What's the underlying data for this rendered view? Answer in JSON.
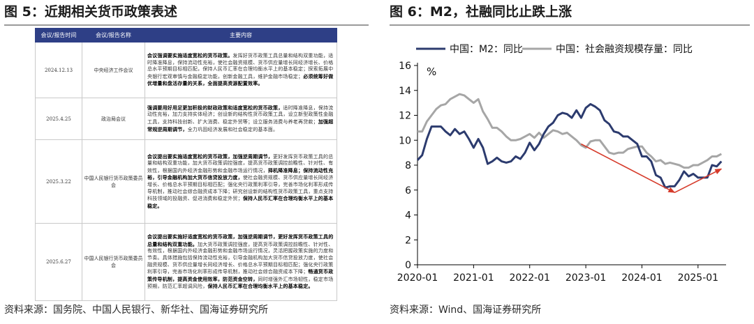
{
  "left": {
    "title": "图 5：近期相关货币政策表述",
    "source": "资料来源：国务院、中国人民银行、新华社、国海证券研究所",
    "table": {
      "headers": [
        "会议/报告时间",
        "会议/报告名称",
        "主要内容"
      ],
      "rows": [
        {
          "date": "2024.12.13",
          "name": "中央经济工作会议",
          "content": [
            {
              "t": "会议强调要实施适度宽松的货币政策。",
              "b": true
            },
            {
              "t": "发挥好货币政策工具总量和结构双重功能，适时降准降息，保持流动性充裕，使社会融资规模、货币供应量增长同经济增长、价格总水平预期目标相匹配，保持人民币汇率在合理均衡水平上的基本稳定；探索拓展中央银行宏观审慎与金融稳定功能，创新金融工具，维护金融市场稳定；",
              "b": false
            },
            {
              "t": "必须统筹好做优增量和盘活存量的关系，全面提高资源配置效率。",
              "b": true
            }
          ]
        },
        {
          "date": "2025.4.25",
          "name": "政治局会议",
          "content": [
            {
              "t": "强调要用好用足更加积极的财政政策和适度宽松的货币政策，",
              "b": true
            },
            {
              "t": "适时降准降息，保持流动性充裕，加力支持实体经济；创设新的结构性货币政策工具，设立新型政策性金融工具，支持科技创新、扩大消费、稳定外贸等；设立服务消费与养老再贷款；",
              "b": false
            },
            {
              "t": "加强超常规逆周期调节，",
              "b": true
            },
            {
              "t": "全力巩固经济发展和社会稳定的基本面。",
              "b": false
            }
          ]
        },
        {
          "date": "2025.3.22",
          "name": "中国人民银行货币政策委员会",
          "content": [
            {
              "t": "会议提出要实施适度宽松的货币政策，加强逆周期调节，",
              "b": true
            },
            {
              "t": "更好发挥货币政策工具的总量和结构双重功能，加大货币政策调控强度，提高货币政策调控前瞻性、针对性、有效性，根据国内外经济金融形势和金融市场运行情况，",
              "b": false
            },
            {
              "t": "择机降准降息；保持流动性充裕，引导金融机构加大货币信贷投放力度，",
              "b": true
            },
            {
              "t": "使社会融资规模、货币供应量增长同经济增长、价格总水平预期目标相匹配；强化央行政策利率引导，完善市场化利率形成传导机制，推动社会综合融资成本下降；研究创设新的结构性货币政策工具，重点支持科技领域的投融资、促进消费和稳定外贸；",
              "b": false
            },
            {
              "t": "保持人民币汇率在合理均衡水平上的基本稳定。",
              "b": true
            }
          ]
        },
        {
          "date": "2025.6.27",
          "name": "中国人民银行货币政策委员会",
          "content": [
            {
              "t": "会议提出要实施好适度宽松的货币政策，加强逆周期调节，更好发挥货币政策工具的总量和结构双重功能。",
              "b": true
            },
            {
              "t": "加大货币政策调控强度，提高货币政策调控前瞻性、针对性、有效性，根据国内外经济金融形势和金融市场运行情况，灵活把握政策实施的力度和节奏。具体措施包括保持流动性充裕，引导金融机构加大货币信贷投放力度，使社会融资规模、货币供应量增长同经济增长、价格总水平预期目标相匹配；强化央行政策利率引导，完善市场化利率形成传导机制，推动社会综合融资成本下降；",
              "b": false
            },
            {
              "t": "畅通货币政策传导机制，提高资金使用效率，防范资金空转，",
              "b": true
            },
            {
              "t": "同时增强外汇市场韧性，稳定市场预期，防范汇率超调风险，",
              "b": false
            },
            {
              "t": "保持人民币汇率在合理均衡水平上的基本稳定。",
              "b": true
            }
          ]
        }
      ]
    }
  },
  "right": {
    "title": "图 6：M2，社融同比止跌上涨",
    "source": "资料来源：Wind、国海证券研究所",
    "chart_data": {
      "type": "line",
      "title": "",
      "xlabel": "",
      "ylabel": "%",
      "ylim": [
        0,
        16
      ],
      "yticks": [
        0,
        2,
        4,
        6,
        8,
        10,
        12,
        14,
        16
      ],
      "xticks": [
        "2020-01",
        "2021-01",
        "2022-01",
        "2023-01",
        "2024-01",
        "2025-01"
      ],
      "xlim": [
        "2020-01",
        "2025-07"
      ],
      "grid": false,
      "legend_position": "top",
      "series": [
        {
          "name": "中国：M2：同比",
          "color": "#2c3b6e",
          "points": [
            [
              "2020-01",
              8.4
            ],
            [
              "2020-02",
              8.8
            ],
            [
              "2020-03",
              10.1
            ],
            [
              "2020-04",
              11.1
            ],
            [
              "2020-05",
              11.1
            ],
            [
              "2020-06",
              11.1
            ],
            [
              "2020-07",
              10.7
            ],
            [
              "2020-08",
              10.4
            ],
            [
              "2020-09",
              10.9
            ],
            [
              "2020-10",
              10.5
            ],
            [
              "2020-11",
              10.7
            ],
            [
              "2020-12",
              10.1
            ],
            [
              "2021-01",
              9.4
            ],
            [
              "2021-02",
              10.1
            ],
            [
              "2021-03",
              9.4
            ],
            [
              "2021-04",
              8.1
            ],
            [
              "2021-05",
              8.3
            ],
            [
              "2021-06",
              8.6
            ],
            [
              "2021-07",
              8.3
            ],
            [
              "2021-08",
              8.2
            ],
            [
              "2021-09",
              8.3
            ],
            [
              "2021-10",
              8.7
            ],
            [
              "2021-11",
              8.5
            ],
            [
              "2021-12",
              9.0
            ],
            [
              "2022-01",
              9.8
            ],
            [
              "2022-02",
              9.2
            ],
            [
              "2022-03",
              9.7
            ],
            [
              "2022-04",
              10.5
            ],
            [
              "2022-05",
              11.1
            ],
            [
              "2022-06",
              11.4
            ],
            [
              "2022-07",
              12.0
            ],
            [
              "2022-08",
              12.2
            ],
            [
              "2022-09",
              12.1
            ],
            [
              "2022-10",
              11.8
            ],
            [
              "2022-11",
              12.4
            ],
            [
              "2022-12",
              11.8
            ],
            [
              "2023-01",
              12.6
            ],
            [
              "2023-02",
              12.9
            ],
            [
              "2023-03",
              12.7
            ],
            [
              "2023-04",
              12.4
            ],
            [
              "2023-05",
              11.6
            ],
            [
              "2023-06",
              11.3
            ],
            [
              "2023-07",
              10.7
            ],
            [
              "2023-08",
              10.6
            ],
            [
              "2023-09",
              10.3
            ],
            [
              "2023-10",
              10.3
            ],
            [
              "2023-11",
              10.0
            ],
            [
              "2023-12",
              9.7
            ],
            [
              "2024-01",
              8.7
            ],
            [
              "2024-02",
              8.7
            ],
            [
              "2024-03",
              8.3
            ],
            [
              "2024-04",
              7.2
            ],
            [
              "2024-05",
              7.0
            ],
            [
              "2024-06",
              6.2
            ],
            [
              "2024-07",
              6.3
            ],
            [
              "2024-08",
              6.3
            ],
            [
              "2024-09",
              6.8
            ],
            [
              "2024-10",
              7.5
            ],
            [
              "2024-11",
              7.1
            ],
            [
              "2024-12",
              7.3
            ],
            [
              "2025-01",
              7.0
            ],
            [
              "2025-02",
              7.0
            ],
            [
              "2025-03",
              7.0
            ],
            [
              "2025-04",
              8.0
            ],
            [
              "2025-05",
              7.9
            ],
            [
              "2025-06",
              8.3
            ]
          ]
        },
        {
          "name": "中国：社会融资规模存量：同比",
          "color": "#a6a6a6",
          "points": [
            [
              "2020-01",
              10.7
            ],
            [
              "2020-02",
              10.7
            ],
            [
              "2020-03",
              11.5
            ],
            [
              "2020-04",
              12.0
            ],
            [
              "2020-05",
              12.5
            ],
            [
              "2020-06",
              12.8
            ],
            [
              "2020-07",
              12.9
            ],
            [
              "2020-08",
              13.3
            ],
            [
              "2020-09",
              13.5
            ],
            [
              "2020-10",
              13.7
            ],
            [
              "2020-11",
              13.6
            ],
            [
              "2020-12",
              13.3
            ],
            [
              "2021-01",
              13.0
            ],
            [
              "2021-02",
              13.3
            ],
            [
              "2021-03",
              12.3
            ],
            [
              "2021-04",
              11.7
            ],
            [
              "2021-05",
              11.0
            ],
            [
              "2021-06",
              11.0
            ],
            [
              "2021-07",
              10.7
            ],
            [
              "2021-08",
              10.3
            ],
            [
              "2021-09",
              10.0
            ],
            [
              "2021-10",
              10.0
            ],
            [
              "2021-11",
              10.1
            ],
            [
              "2021-12",
              10.3
            ],
            [
              "2022-01",
              10.5
            ],
            [
              "2022-02",
              10.2
            ],
            [
              "2022-03",
              10.6
            ],
            [
              "2022-04",
              10.2
            ],
            [
              "2022-05",
              10.5
            ],
            [
              "2022-06",
              10.8
            ],
            [
              "2022-07",
              10.7
            ],
            [
              "2022-08",
              10.5
            ],
            [
              "2022-09",
              10.6
            ],
            [
              "2022-10",
              10.3
            ],
            [
              "2022-11",
              10.0
            ],
            [
              "2022-12",
              9.6
            ],
            [
              "2023-01",
              9.4
            ],
            [
              "2023-02",
              9.9
            ],
            [
              "2023-03",
              10.0
            ],
            [
              "2023-04",
              10.0
            ],
            [
              "2023-05",
              9.5
            ],
            [
              "2023-06",
              9.0
            ],
            [
              "2023-07",
              8.9
            ],
            [
              "2023-08",
              9.0
            ],
            [
              "2023-09",
              9.0
            ],
            [
              "2023-10",
              9.3
            ],
            [
              "2023-11",
              9.4
            ],
            [
              "2023-12",
              9.5
            ],
            [
              "2024-01",
              9.5
            ],
            [
              "2024-02",
              9.0
            ],
            [
              "2024-03",
              8.7
            ],
            [
              "2024-04",
              8.3
            ],
            [
              "2024-05",
              8.4
            ],
            [
              "2024-06",
              8.1
            ],
            [
              "2024-07",
              8.2
            ],
            [
              "2024-08",
              8.1
            ],
            [
              "2024-09",
              8.0
            ],
            [
              "2024-10",
              7.8
            ],
            [
              "2024-11",
              7.8
            ],
            [
              "2024-12",
              8.0
            ],
            [
              "2025-01",
              8.0
            ],
            [
              "2025-02",
              8.2
            ],
            [
              "2025-03",
              8.4
            ],
            [
              "2025-04",
              8.7
            ],
            [
              "2025-05",
              8.7
            ],
            [
              "2025-06",
              8.9
            ]
          ]
        }
      ],
      "annotations": [
        {
          "type": "arrow",
          "color": "#d63b2b",
          "from": [
            "2022-12",
            9.7
          ],
          "to": [
            "2024-08",
            5.8
          ]
        },
        {
          "type": "arrow",
          "color": "#d63b2b",
          "from": [
            "2024-08",
            5.8
          ],
          "to": [
            "2025-06",
            7.7
          ]
        }
      ]
    }
  }
}
